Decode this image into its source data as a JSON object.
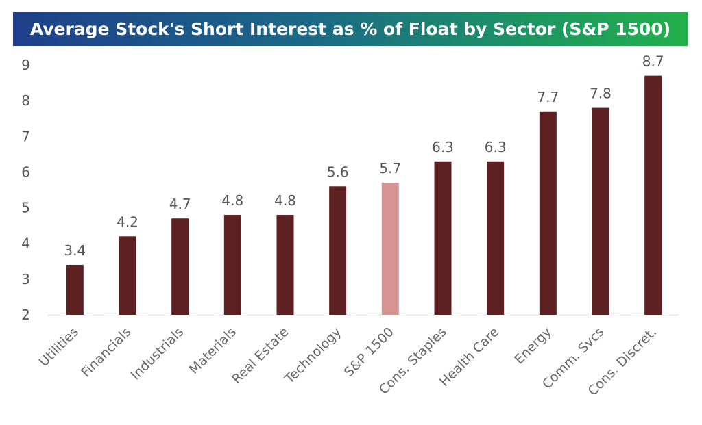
{
  "chart_data": {
    "type": "bar",
    "title": "Average Stock's Short Interest as % of Float by Sector (S&P 1500)",
    "xlabel": "",
    "ylabel": "",
    "ylim": [
      2,
      9
    ],
    "yticks": [
      "2",
      "3",
      "4",
      "5",
      "6",
      "7",
      "8",
      "9"
    ],
    "grid": false,
    "categories": [
      "Utilities",
      "Financials",
      "Industrials",
      "Materials",
      "Real Estate",
      "Technology",
      "S&P 1500",
      "Cons. Staples",
      "Health Care",
      "Energy",
      "Comm. Svcs",
      "Cons. Discret."
    ],
    "values": [
      3.4,
      4.2,
      4.7,
      4.8,
      4.8,
      5.6,
      5.7,
      6.3,
      6.3,
      7.7,
      7.8,
      8.7
    ],
    "data_labels": [
      "3.4",
      "4.2",
      "4.7",
      "4.8",
      "4.8",
      "5.6",
      "5.7",
      "6.3",
      "6.3",
      "7.7",
      "7.8",
      "8.7"
    ],
    "bar_color": "#5e2121",
    "highlight_category": "S&P 1500",
    "highlight_color": "#d99494",
    "title_gradient": [
      "#1f3f8a",
      "#22b04b"
    ]
  }
}
